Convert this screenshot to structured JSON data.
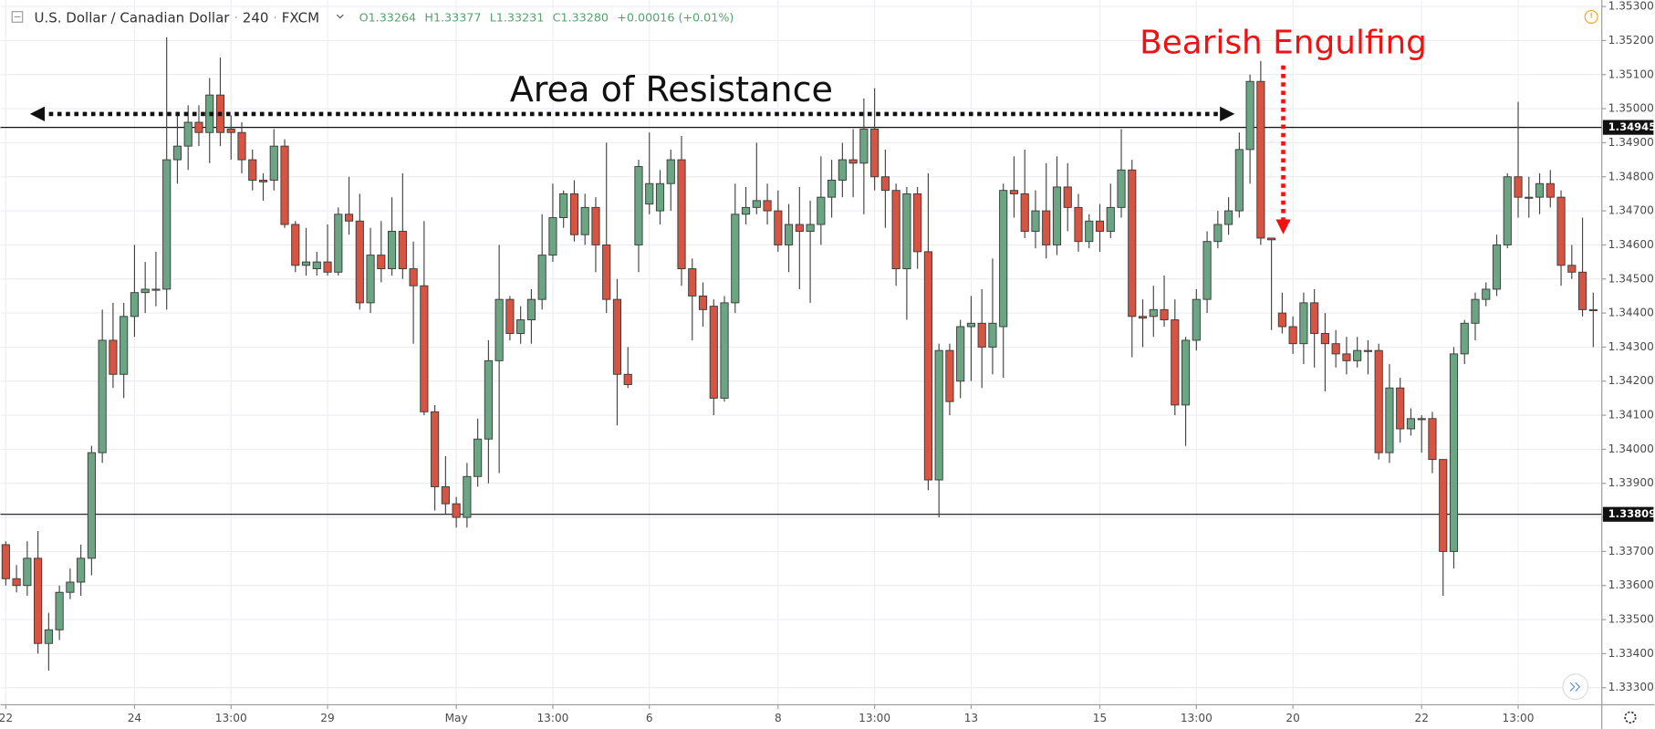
{
  "chart_data": {
    "type": "candlestick",
    "symbol": "U.S. Dollar / Canadian Dollar",
    "interval": "240",
    "source": "FXCM",
    "ohlc_labels": [
      "O1.33264",
      "H1.33377",
      "L1.33231",
      "C1.33280",
      "+0.00016 (+0.01%)"
    ],
    "annotations": [
      "Area of Resistance",
      "Bearish Engulfing"
    ],
    "up_color": "#6ba583",
    "down_color": "#d75442",
    "open": [
      1.3372,
      1.3362,
      1.336,
      1.3368,
      1.3343,
      1.3347,
      1.3358,
      1.3361,
      1.3368,
      1.3399,
      1.3432,
      1.3422,
      1.3439,
      1.3446,
      1.3447,
      1.3447,
      1.3485,
      1.3489,
      1.3496,
      1.3493,
      1.3504,
      1.3494,
      1.3493,
      1.3485,
      1.3479,
      1.3479,
      1.3489,
      1.3466,
      1.3454,
      1.3453,
      1.3455,
      1.3452,
      1.3469,
      1.3467,
      1.3443,
      1.3457,
      1.3453,
      1.3464,
      1.3453,
      1.3448,
      1.3411,
      1.3389,
      1.3384,
      1.338,
      1.3392,
      1.3403,
      1.3426,
      1.3444,
      1.3434,
      1.3438,
      1.3444,
      1.3457,
      1.3468,
      1.3475,
      1.3463,
      1.3471,
      1.346,
      1.3444,
      1.3422,
      1.346,
      1.3472,
      1.347,
      1.3478,
      1.3485,
      1.3453,
      1.3445,
      1.3442,
      1.3415,
      1.3443,
      1.3469,
      1.3471,
      1.3473,
      1.347,
      1.346,
      1.3466,
      1.3464,
      1.3466,
      1.3474,
      1.3479,
      1.3485,
      1.3484,
      1.3494,
      1.348,
      1.3476,
      1.3453,
      1.3475,
      1.3458,
      1.3391,
      1.3429,
      1.342,
      1.3436,
      1.3437,
      1.343,
      1.3436,
      1.3476,
      1.3475,
      1.3464,
      1.347,
      1.346,
      1.3477,
      1.3471,
      1.3461,
      1.3467,
      1.3464,
      1.3471,
      1.3482,
      1.3439,
      1.3439,
      1.3441,
      1.3438,
      1.3413,
      1.3432,
      1.3444,
      1.3461,
      1.3466,
      1.347,
      1.3488,
      1.3508,
      1.3462,
      1.344,
      1.3436,
      1.3431,
      1.3443,
      1.3434,
      1.3431,
      1.3428,
      1.3426,
      1.3429,
      1.3429,
      1.3399,
      1.3418,
      1.3406,
      1.3409,
      1.3409,
      1.3397,
      1.337,
      1.3428,
      1.3437,
      1.3444,
      1.3447,
      1.346,
      1.348,
      1.3474,
      1.3474,
      1.3478,
      1.3474,
      1.3454,
      1.3452,
      1.3441
    ],
    "high": [
      1.3373,
      1.3366,
      1.3373,
      1.3376,
      1.3352,
      1.336,
      1.3365,
      1.3372,
      1.3401,
      1.3441,
      1.3443,
      1.3443,
      1.346,
      1.3455,
      1.3458,
      1.3521,
      1.3498,
      1.3501,
      1.3501,
      1.3509,
      1.3515,
      1.3498,
      1.3496,
      1.3488,
      1.3481,
      1.3494,
      1.3491,
      1.3467,
      1.3465,
      1.3458,
      1.3466,
      1.3471,
      1.348,
      1.3475,
      1.3465,
      1.3467,
      1.3474,
      1.3481,
      1.3461,
      1.3467,
      1.3413,
      1.3398,
      1.3386,
      1.3396,
      1.3409,
      1.3432,
      1.346,
      1.3445,
      1.3442,
      1.3447,
      1.3469,
      1.3478,
      1.3476,
      1.3479,
      1.3475,
      1.3474,
      1.349,
      1.345,
      1.343,
      1.3485,
      1.3493,
      1.3482,
      1.3488,
      1.3492,
      1.3456,
      1.3449,
      1.3444,
      1.3445,
      1.3478,
      1.3477,
      1.349,
      1.3478,
      1.3476,
      1.3472,
      1.3477,
      1.3473,
      1.3486,
      1.3485,
      1.349,
      1.3494,
      1.3503,
      1.3506,
      1.3488,
      1.3478,
      1.3477,
      1.3477,
      1.3481,
      1.3431,
      1.3431,
      1.3438,
      1.3445,
      1.3447,
      1.3456,
      1.3478,
      1.3486,
      1.3488,
      1.3476,
      1.3484,
      1.3486,
      1.3484,
      1.3475,
      1.3469,
      1.3472,
      1.3478,
      1.3494,
      1.3485,
      1.3444,
      1.3448,
      1.3451,
      1.3444,
      1.3433,
      1.3447,
      1.3464,
      1.347,
      1.3474,
      1.3493,
      1.351,
      1.3514,
      1.3462,
      1.3446,
      1.3439,
      1.3446,
      1.3447,
      1.344,
      1.3435,
      1.3433,
      1.3433,
      1.3432,
      1.3431,
      1.3425,
      1.3421,
      1.3412,
      1.341,
      1.3411,
      1.3397,
      1.343,
      1.3438,
      1.3446,
      1.3449,
      1.3463,
      1.3481,
      1.3502,
      1.348,
      1.3481,
      1.3482,
      1.3476,
      1.346,
      1.3468,
      1.3446
    ],
    "low": [
      1.336,
      1.3358,
      1.3357,
      1.334,
      1.3335,
      1.3344,
      1.3356,
      1.3357,
      1.3363,
      1.3396,
      1.3418,
      1.3415,
      1.3433,
      1.344,
      1.3442,
      1.3441,
      1.3478,
      1.3482,
      1.3489,
      1.3484,
      1.3489,
      1.3485,
      1.3481,
      1.3476,
      1.3473,
      1.3476,
      1.3465,
      1.3452,
      1.3451,
      1.3451,
      1.3451,
      1.3451,
      1.3463,
      1.3441,
      1.344,
      1.3449,
      1.3451,
      1.345,
      1.3431,
      1.341,
      1.3382,
      1.3381,
      1.3377,
      1.3377,
      1.3389,
      1.339,
      1.3393,
      1.3432,
      1.3431,
      1.3431,
      1.3441,
      1.3455,
      1.3465,
      1.3461,
      1.346,
      1.3452,
      1.344,
      1.3407,
      1.3418,
      1.3452,
      1.3469,
      1.3466,
      1.347,
      1.3448,
      1.3432,
      1.3436,
      1.341,
      1.3414,
      1.344,
      1.3466,
      1.3469,
      1.3466,
      1.3458,
      1.3452,
      1.3447,
      1.3443,
      1.346,
      1.3468,
      1.3474,
      1.3474,
      1.3469,
      1.3476,
      1.3465,
      1.3448,
      1.3438,
      1.3453,
      1.3388,
      1.338,
      1.341,
      1.3415,
      1.342,
      1.3418,
      1.3422,
      1.3421,
      1.3468,
      1.3462,
      1.3459,
      1.3456,
      1.3457,
      1.3464,
      1.3458,
      1.3459,
      1.3458,
      1.3462,
      1.3468,
      1.3427,
      1.343,
      1.3433,
      1.3436,
      1.341,
      1.3401,
      1.3429,
      1.344,
      1.3459,
      1.3463,
      1.3468,
      1.3478,
      1.346,
      1.3435,
      1.3434,
      1.3428,
      1.3425,
      1.3424,
      1.3417,
      1.3424,
      1.3422,
      1.3424,
      1.3422,
      1.3397,
      1.3396,
      1.3402,
      1.3404,
      1.3399,
      1.3393,
      1.3357,
      1.3365,
      1.3425,
      1.3432,
      1.3442,
      1.3445,
      1.3459,
      1.3468,
      1.3468,
      1.3469,
      1.3471,
      1.3448,
      1.345,
      1.3439,
      1.343
    ],
    "close": [
      1.3362,
      1.336,
      1.3368,
      1.3343,
      1.3347,
      1.3358,
      1.3361,
      1.3368,
      1.3399,
      1.3432,
      1.3422,
      1.3439,
      1.3446,
      1.3447,
      1.3447,
      1.3485,
      1.3489,
      1.3496,
      1.3493,
      1.3504,
      1.3493,
      1.3493,
      1.3485,
      1.3479,
      1.34785,
      1.3489,
      1.3466,
      1.3454,
      1.3455,
      1.3455,
      1.3452,
      1.3469,
      1.3467,
      1.3443,
      1.3457,
      1.3453,
      1.3464,
      1.3453,
      1.3448,
      1.3411,
      1.3389,
      1.3384,
      1.338,
      1.3392,
      1.3403,
      1.3426,
      1.3444,
      1.3434,
      1.3438,
      1.3444,
      1.3457,
      1.3468,
      1.3475,
      1.3463,
      1.3471,
      1.346,
      1.3444,
      1.3422,
      1.3419,
      1.3483,
      1.3478,
      1.3478,
      1.3485,
      1.3453,
      1.3445,
      1.3441,
      1.3415,
      1.3443,
      1.3469,
      1.3471,
      1.3473,
      1.347,
      1.346,
      1.3466,
      1.3464,
      1.3466,
      1.3474,
      1.3479,
      1.3485,
      1.3484,
      1.3494,
      1.348,
      1.3476,
      1.3453,
      1.3475,
      1.3458,
      1.3391,
      1.3429,
      1.3414,
      1.3436,
      1.3437,
      1.343,
      1.3437,
      1.3476,
      1.3475,
      1.3464,
      1.347,
      1.346,
      1.3477,
      1.3471,
      1.3461,
      1.3467,
      1.3464,
      1.3471,
      1.3482,
      1.3439,
      1.34385,
      1.3441,
      1.3438,
      1.3413,
      1.3432,
      1.3444,
      1.3461,
      1.3466,
      1.347,
      1.3488,
      1.3508,
      1.3462,
      1.34615,
      1.3436,
      1.3431,
      1.3443,
      1.3434,
      1.3431,
      1.3428,
      1.3426,
      1.3429,
      1.34288,
      1.3399,
      1.3418,
      1.3406,
      1.3409,
      1.34088,
      1.3397,
      1.337,
      1.3428,
      1.3437,
      1.3444,
      1.3447,
      1.346,
      1.348,
      1.3474,
      1.3474,
      1.3478,
      1.3474,
      1.3454,
      1.3452,
      1.3441,
      1.3441
    ],
    "xlim": [
      -0.5,
      148.8
    ],
    "xticks": [
      {
        "value": 0,
        "label": "22"
      },
      {
        "value": 12,
        "label": "24"
      },
      {
        "value": 21,
        "label": "13:00"
      },
      {
        "value": 30,
        "label": "29"
      },
      {
        "value": 42,
        "label": "May"
      },
      {
        "value": 51,
        "label": "13:00"
      },
      {
        "value": 60,
        "label": "6"
      },
      {
        "value": 72,
        "label": "8"
      },
      {
        "value": 81,
        "label": "13:00"
      },
      {
        "value": 90,
        "label": "13"
      },
      {
        "value": 102,
        "label": "15"
      },
      {
        "value": 111,
        "label": "13:00"
      },
      {
        "value": 120,
        "label": "20"
      },
      {
        "value": 132,
        "label": "22"
      },
      {
        "value": 141,
        "label": "13:00"
      }
    ],
    "ylim": [
      1.3325,
      1.35319
    ],
    "yticks": [
      {
        "value": 1.353,
        "label": "1.35300"
      },
      {
        "value": 1.352,
        "label": "1.35200"
      },
      {
        "value": 1.351,
        "label": "1.35100"
      },
      {
        "value": 1.35,
        "label": "1.35000"
      },
      {
        "value": 1.349,
        "label": "1.34900"
      },
      {
        "value": 1.348,
        "label": "1.34800"
      },
      {
        "value": 1.347,
        "label": "1.34700"
      },
      {
        "value": 1.346,
        "label": "1.34600"
      },
      {
        "value": 1.345,
        "label": "1.34500"
      },
      {
        "value": 1.344,
        "label": "1.34400"
      },
      {
        "value": 1.343,
        "label": "1.34300"
      },
      {
        "value": 1.342,
        "label": "1.34200"
      },
      {
        "value": 1.341,
        "label": "1.34100"
      },
      {
        "value": 1.34,
        "label": "1.34000"
      },
      {
        "value": 1.339,
        "label": "1.33900"
      },
      {
        "value": 1.338,
        "label": "1.33800"
      },
      {
        "value": 1.337,
        "label": "1.33700"
      },
      {
        "value": 1.336,
        "label": "1.33600"
      },
      {
        "value": 1.335,
        "label": "1.33500"
      },
      {
        "value": 1.334,
        "label": "1.33400"
      },
      {
        "value": 1.333,
        "label": "1.33300"
      }
    ],
    "hlines": [
      1.34945,
      1.33809
    ],
    "grid": true
  }
}
